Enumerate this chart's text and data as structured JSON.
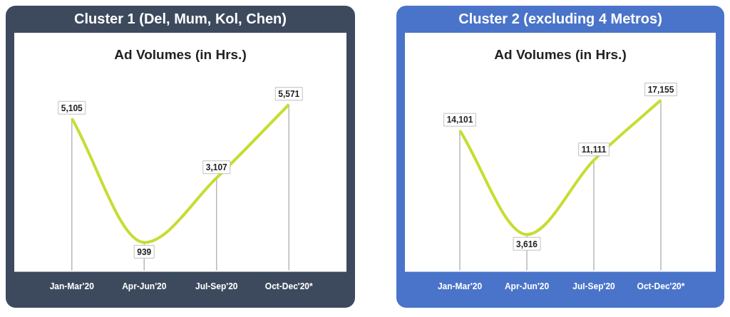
{
  "chart_data": [
    {
      "type": "line",
      "title": "Cluster 1 (Del, Mum, Kol, Chen)",
      "subtitle": "Ad Volumes (in Hrs.)",
      "categories": [
        "Jan-Mar'20",
        "Apr-Jun'20",
        "Jul-Sep'20",
        "Oct-Dec'20*"
      ],
      "series": [
        {
          "color": "#c8dc32",
          "values": [
            5105,
            939,
            3107,
            5571
          ],
          "value_labels": [
            "5,105",
            "939",
            "3,107",
            "5,571"
          ]
        }
      ],
      "grid": "x",
      "legend": false,
      "tick_labels": "x"
    },
    {
      "type": "line",
      "title": "Cluster 2 (excluding 4 Metros)",
      "subtitle": "Ad Volumes (in Hrs.)",
      "categories": [
        "Jan-Mar'20",
        "Apr-Jun'20",
        "Jul-Sep'20",
        "Oct-Dec'20*"
      ],
      "series": [
        {
          "color": "#c8dc32",
          "values": [
            14101,
            3616,
            11111,
            17155
          ],
          "value_labels": [
            "14,101",
            "3,616",
            "11,111",
            "17,155"
          ]
        }
      ],
      "grid": "x",
      "legend": false,
      "tick_labels": "x"
    }
  ]
}
